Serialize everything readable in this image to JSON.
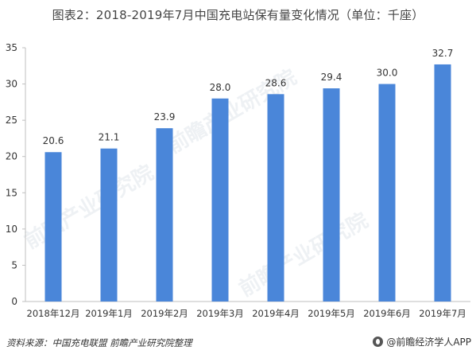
{
  "title": "图表2：2018-2019年7月中国充电站保有量变化情况（单位：千座）",
  "source": "资料来源：中国充电联盟 前瞻产业研究院整理",
  "brand": "@前瞻经济学人APP",
  "watermark": "前瞻产业研究院",
  "colors": {
    "bar": "#4a86d9",
    "axis": "#bfbfbf",
    "text": "#333333"
  },
  "chart_data": {
    "type": "bar",
    "categories": [
      "2018年12月",
      "2019年1月",
      "2019年2月",
      "2019年3月",
      "2019年4月",
      "2019年5月",
      "2019年6月",
      "2019年7月"
    ],
    "values": [
      20.6,
      21.1,
      23.9,
      28.0,
      28.6,
      29.4,
      30.0,
      32.7
    ],
    "value_labels": [
      "20.6",
      "21.1",
      "23.9",
      "28.0",
      "28.6",
      "29.4",
      "30.0",
      "32.7"
    ],
    "ylim": [
      0,
      35
    ],
    "yticks": [
      0,
      5,
      10,
      15,
      20,
      25,
      30,
      35
    ],
    "grid": false,
    "legend": "none"
  }
}
